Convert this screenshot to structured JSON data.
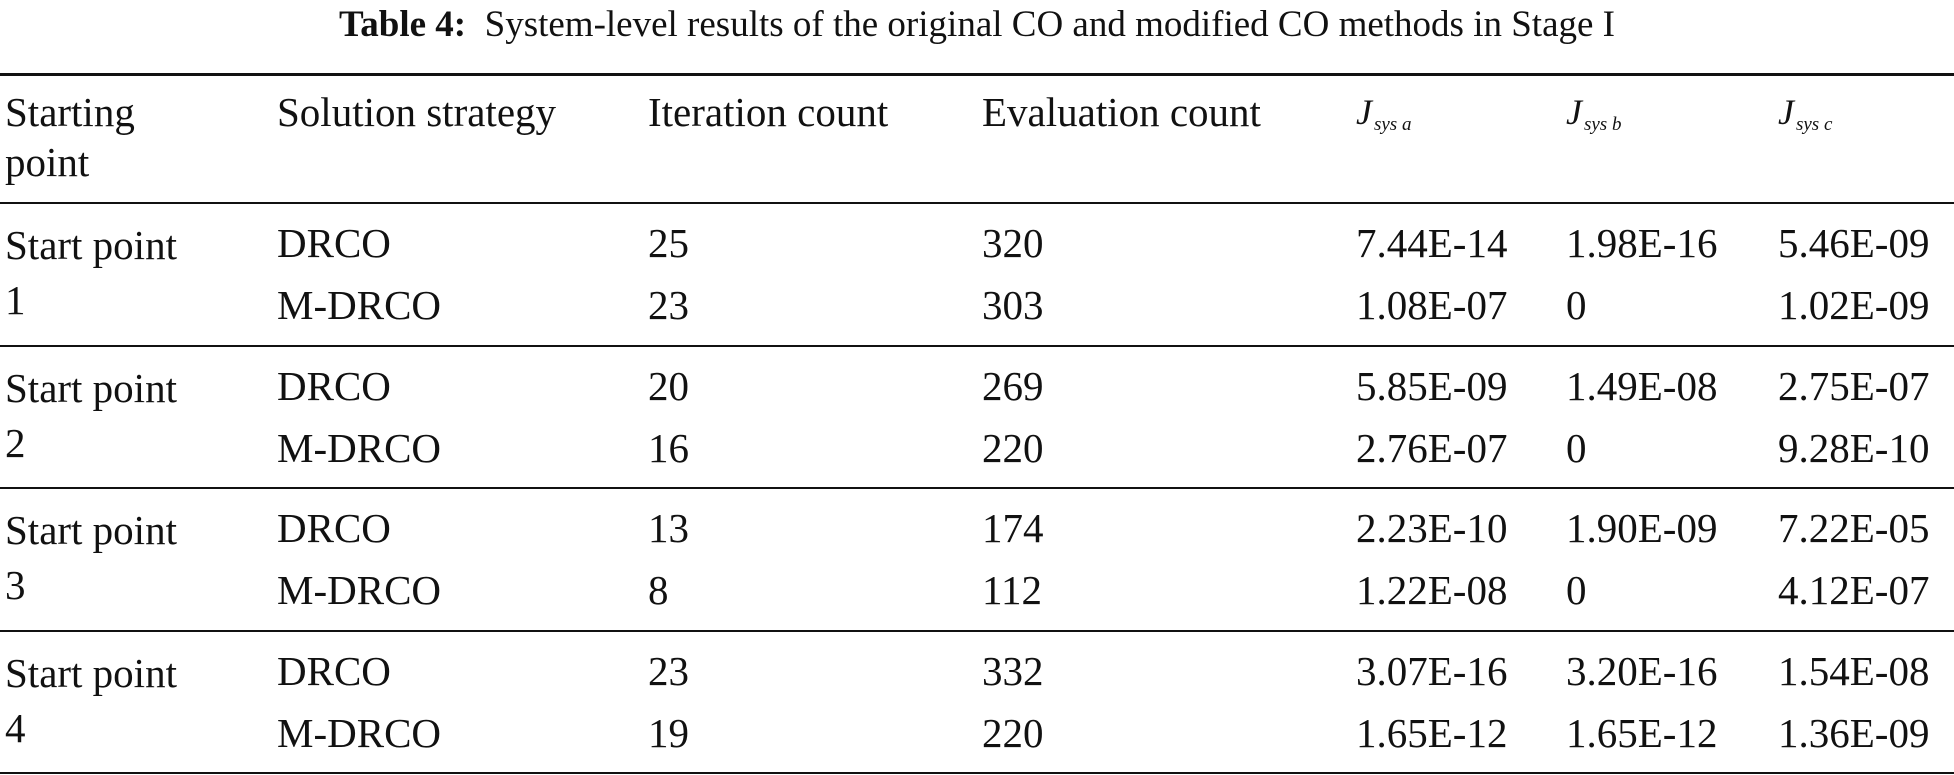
{
  "caption": {
    "label": "Table 4:",
    "text": "System-level results of the original CO and modified CO methods in Stage I"
  },
  "table": {
    "header": [
      {
        "lines": [
          "Starting",
          "point"
        ]
      },
      {
        "text": "Solution strategy"
      },
      {
        "text": "Iteration count"
      },
      {
        "text": "Evaluation count"
      },
      {
        "main": "J",
        "sub": "sys a"
      },
      {
        "main": "J",
        "sub": "sys b"
      },
      {
        "main": "J",
        "sub": "sys c"
      }
    ],
    "groups": [
      {
        "start": [
          "Start point",
          "1"
        ],
        "rows": [
          [
            "DRCO",
            25,
            320,
            "7.44E-14",
            "1.98E-16",
            "5.46E-09"
          ],
          [
            "M-DRCO",
            23,
            303,
            "1.08E-07",
            0,
            "1.02E-09"
          ]
        ]
      },
      {
        "start": [
          "Start point",
          "2"
        ],
        "rows": [
          [
            "DRCO",
            20,
            269,
            "5.85E-09",
            "1.49E-08",
            "2.75E-07"
          ],
          [
            "M-DRCO",
            16,
            220,
            "2.76E-07",
            0,
            "9.28E-10"
          ]
        ]
      },
      {
        "start": [
          "Start point",
          "3"
        ],
        "rows": [
          [
            "DRCO",
            13,
            174,
            "2.23E-10",
            "1.90E-09",
            "7.22E-05"
          ],
          [
            "M-DRCO",
            8,
            112,
            "1.22E-08",
            0,
            "4.12E-07"
          ]
        ]
      },
      {
        "start": [
          "Start point",
          "4"
        ],
        "rows": [
          [
            "DRCO",
            23,
            332,
            "3.07E-16",
            "3.20E-16",
            "1.54E-08"
          ],
          [
            "M-DRCO",
            19,
            220,
            "1.65E-12",
            "1.65E-12",
            "1.36E-09"
          ]
        ]
      }
    ]
  }
}
